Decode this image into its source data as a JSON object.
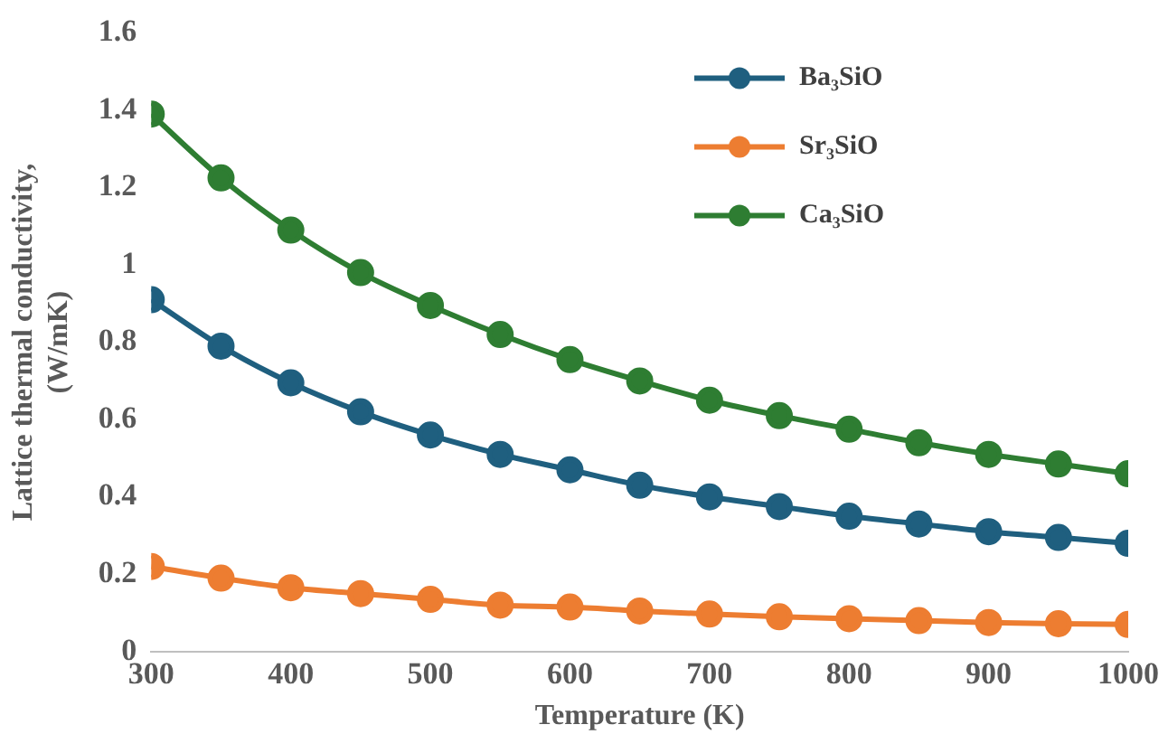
{
  "chart_data": {
    "type": "line",
    "xlabel": "Temperature (K)",
    "ylabel": "Lattice thermal conductivity,\n(W/mK)",
    "x": [
      300,
      350,
      400,
      450,
      500,
      550,
      600,
      650,
      700,
      750,
      800,
      850,
      900,
      950,
      1000
    ],
    "xlim": [
      300,
      1000
    ],
    "xticks": [
      300,
      400,
      500,
      600,
      700,
      800,
      900,
      1000
    ],
    "ylim": [
      0,
      1.6
    ],
    "yticks": [
      0,
      0.2,
      0.4,
      0.6,
      0.8,
      1,
      1.2,
      1.4,
      1.6
    ],
    "grid": false,
    "legend": "top right",
    "marker": "circle",
    "line_style": "solid",
    "series": [
      {
        "name": "Ba₃SiO",
        "color": "#1f5f7f",
        "values": [
          0.91,
          0.79,
          0.695,
          0.62,
          0.56,
          0.51,
          0.47,
          0.43,
          0.4,
          0.375,
          0.35,
          0.33,
          0.31,
          0.295,
          0.28
        ]
      },
      {
        "name": "Sr₃SiO",
        "color": "#ed7d31",
        "values": [
          0.22,
          0.19,
          0.165,
          0.15,
          0.135,
          0.12,
          0.115,
          0.105,
          0.097,
          0.09,
          0.085,
          0.08,
          0.075,
          0.072,
          0.07
        ]
      },
      {
        "name": "Ca₃SiO",
        "color": "#2e7d32",
        "values": [
          1.39,
          1.225,
          1.09,
          0.98,
          0.895,
          0.82,
          0.755,
          0.7,
          0.65,
          0.61,
          0.575,
          0.54,
          0.51,
          0.485,
          0.46
        ]
      }
    ]
  }
}
